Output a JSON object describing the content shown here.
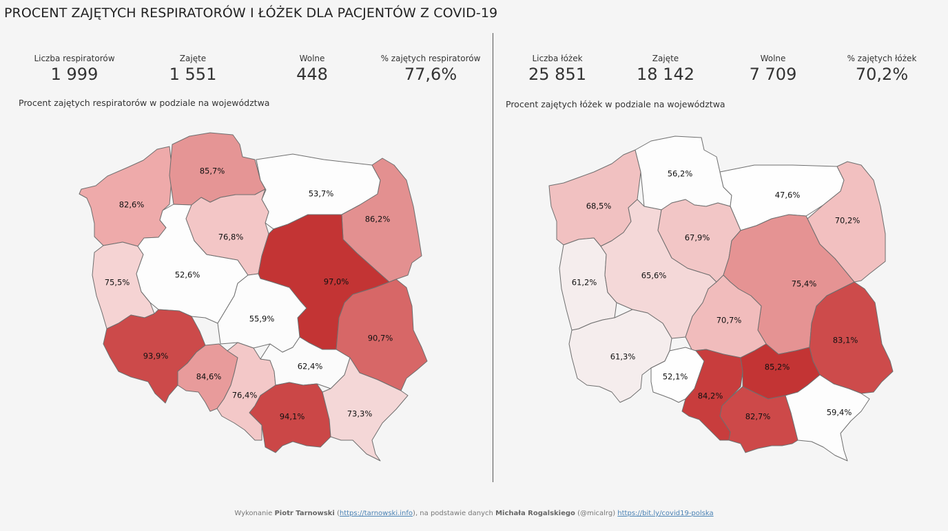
{
  "title": "PROCENT ZAJĘTYCH RESPIRATORÓW I ŁÓŻEK DLA PACJENTÓW Z COVID-19",
  "ventilators": {
    "kpis": [
      {
        "label": "Liczba respiratorów",
        "value": "1 999"
      },
      {
        "label": "Zajęte",
        "value": "1 551"
      },
      {
        "label": "Wolne",
        "value": "448"
      },
      {
        "label": "% zajętych respiratorów",
        "value": "77,6%"
      }
    ],
    "subtitle": "Procent zajętych respiratorów w podziale na województwa",
    "regions": [
      {
        "id": "zachodniopomorskie",
        "label": "82,6%",
        "value": 82.6,
        "color": "#eeaaaa"
      },
      {
        "id": "pomorskie",
        "label": "85,7%",
        "value": 85.7,
        "color": "#e59595"
      },
      {
        "id": "warminsko-mazurskie",
        "label": "53,7%",
        "value": 53.7,
        "color": "#fdfdfd"
      },
      {
        "id": "podlaskie",
        "label": "86,2%",
        "value": 86.2,
        "color": "#e39090"
      },
      {
        "id": "lubuskie",
        "label": "75,5%",
        "value": 75.5,
        "color": "#f5d3d3"
      },
      {
        "id": "wielkopolskie",
        "label": "52,6%",
        "value": 52.6,
        "color": "#fdfdfd"
      },
      {
        "id": "kujawsko-pomorskie",
        "label": "76,8%",
        "value": 76.8,
        "color": "#f3c6c6"
      },
      {
        "id": "mazowieckie",
        "label": "97,0%",
        "value": 97.0,
        "color": "#c33434"
      },
      {
        "id": "lodzkie",
        "label": "55,9%",
        "value": 55.9,
        "color": "#fcfcfc"
      },
      {
        "id": "lubelskie",
        "label": "90,7%",
        "value": 90.7,
        "color": "#d76767"
      },
      {
        "id": "dolnoslaskie",
        "label": "93,9%",
        "value": 93.9,
        "color": "#cc4a4a"
      },
      {
        "id": "opolskie",
        "label": "84,6%",
        "value": 84.6,
        "color": "#e89b9b"
      },
      {
        "id": "slaskie",
        "label": "76,4%",
        "value": 76.4,
        "color": "#f3c8c8"
      },
      {
        "id": "swietokrzyskie",
        "label": "62,4%",
        "value": 62.4,
        "color": "#fbfbfb"
      },
      {
        "id": "malopolskie",
        "label": "94,1%",
        "value": 94.1,
        "color": "#cb4747"
      },
      {
        "id": "podkarpackie",
        "label": "73,3%",
        "value": 73.3,
        "color": "#f4d7d7"
      }
    ]
  },
  "beds": {
    "kpis": [
      {
        "label": "Liczba łóżek",
        "value": "25 851"
      },
      {
        "label": "Zajęte",
        "value": "18 142"
      },
      {
        "label": "Wolne",
        "value": "7 709"
      },
      {
        "label": "% zajętych łóżek",
        "value": "70,2%"
      }
    ],
    "subtitle": "Procent zajętych łóżek w podziale na województwa",
    "regions": [
      {
        "id": "zachodniopomorskie",
        "label": "68,5%",
        "value": 68.5,
        "color": "#f1c1c1"
      },
      {
        "id": "pomorskie",
        "label": "56,2%",
        "value": 56.2,
        "color": "#fdfdfd"
      },
      {
        "id": "warminsko-mazurskie",
        "label": "47,6%",
        "value": 47.6,
        "color": "#fefefe"
      },
      {
        "id": "podlaskie",
        "label": "70,2%",
        "value": 70.2,
        "color": "#f2c0c0"
      },
      {
        "id": "lubuskie",
        "label": "61,2%",
        "value": 61.2,
        "color": "#f5eded"
      },
      {
        "id": "wielkopolskie",
        "label": "65,6%",
        "value": 65.6,
        "color": "#f4d8d8"
      },
      {
        "id": "kujawsko-pomorskie",
        "label": "67,9%",
        "value": 67.9,
        "color": "#f2c6c6"
      },
      {
        "id": "mazowieckie",
        "label": "75,4%",
        "value": 75.4,
        "color": "#e59393"
      },
      {
        "id": "lodzkie",
        "label": "70,7%",
        "value": 70.7,
        "color": "#f1bcbc"
      },
      {
        "id": "lubelskie",
        "label": "83,1%",
        "value": 83.1,
        "color": "#cd4b4b"
      },
      {
        "id": "dolnoslaskie",
        "label": "61,3%",
        "value": 61.3,
        "color": "#f5eded"
      },
      {
        "id": "opolskie",
        "label": "52,1%",
        "value": 52.1,
        "color": "#fefefe"
      },
      {
        "id": "slaskie",
        "label": "84,2%",
        "value": 84.2,
        "color": "#c83d3d"
      },
      {
        "id": "swietokrzyskie",
        "label": "85,2%",
        "value": 85.2,
        "color": "#c33434"
      },
      {
        "id": "malopolskie",
        "label": "82,7%",
        "value": 82.7,
        "color": "#cd4949"
      },
      {
        "id": "podkarpackie",
        "label": "59,4%",
        "value": 59.4,
        "color": "#fdfdfd"
      }
    ]
  },
  "footer": {
    "prefix": "Wykonanie ",
    "author": "Piotr Tarnowski",
    "author_link_pre": " (",
    "author_link": "https://tarnowski.info",
    "mid": "), na podstawie  danych ",
    "source_author": "Michała Rogalskiego",
    "source_handle": " (@micalrg) ",
    "source_link": "https://bit.ly/covid19-polska"
  }
}
